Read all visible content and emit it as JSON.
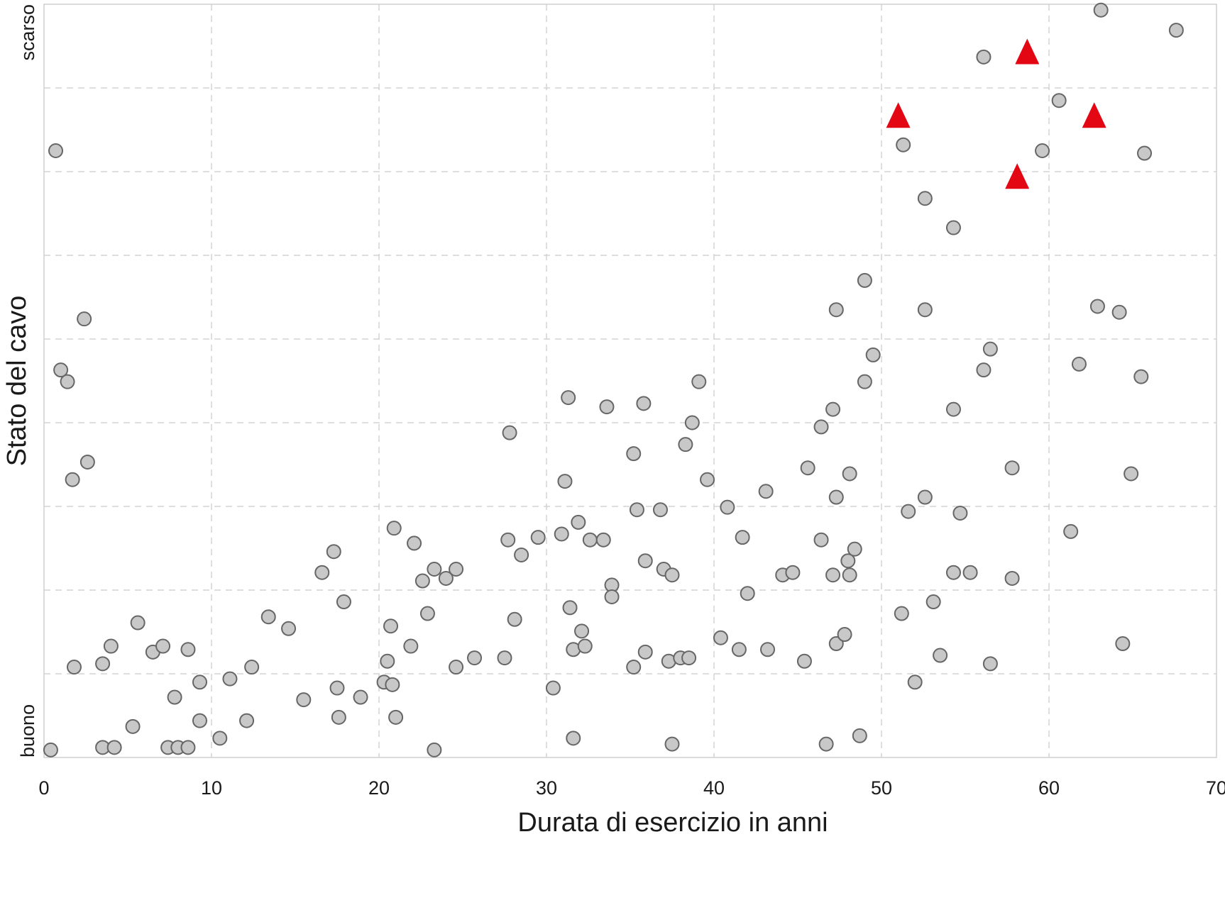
{
  "chart_data": {
    "type": "scatter",
    "xlabel": "Durata di esercizio in anni",
    "ylabel": "Stato del cavo",
    "xlim": [
      0,
      70
    ],
    "ylim": [
      0,
      9
    ],
    "x_ticks": [
      0,
      10,
      20,
      30,
      40,
      50,
      60,
      70
    ],
    "y_ticks": [
      1,
      2,
      3,
      4,
      5,
      6,
      7,
      8
    ],
    "y_tick_labels": [
      {
        "value": 0,
        "label": "buono"
      },
      {
        "value": 9,
        "label": "scarso"
      }
    ],
    "grid": true,
    "legend": "none",
    "series": [
      {
        "marker": "circle",
        "color": "#c8c8c8",
        "edge_color": "#666666",
        "points": [
          [
            0.7,
            7.25
          ],
          [
            1.0,
            4.63
          ],
          [
            1.4,
            4.49
          ],
          [
            1.7,
            3.32
          ],
          [
            1.8,
            1.08
          ],
          [
            2.4,
            5.24
          ],
          [
            2.6,
            3.53
          ],
          [
            0.4,
            0.09
          ],
          [
            3.5,
            0.12
          ],
          [
            3.5,
            1.12
          ],
          [
            4.0,
            1.33
          ],
          [
            4.2,
            0.12
          ],
          [
            5.3,
            0.37
          ],
          [
            5.6,
            1.61
          ],
          [
            6.5,
            1.26
          ],
          [
            7.1,
            1.33
          ],
          [
            7.4,
            0.12
          ],
          [
            7.8,
            0.72
          ],
          [
            8.0,
            0.12
          ],
          [
            8.6,
            0.12
          ],
          [
            8.6,
            1.29
          ],
          [
            9.3,
            0.9
          ],
          [
            9.3,
            0.44
          ],
          [
            10.5,
            0.23
          ],
          [
            11.1,
            0.94
          ],
          [
            12.1,
            0.44
          ],
          [
            12.4,
            1.08
          ],
          [
            13.4,
            1.68
          ],
          [
            14.6,
            1.54
          ],
          [
            15.5,
            0.69
          ],
          [
            16.6,
            2.21
          ],
          [
            17.3,
            2.46
          ],
          [
            17.5,
            0.83
          ],
          [
            17.6,
            0.48
          ],
          [
            17.9,
            1.86
          ],
          [
            18.9,
            0.72
          ],
          [
            20.3,
            0.9
          ],
          [
            20.5,
            1.15
          ],
          [
            20.7,
            1.57
          ],
          [
            20.8,
            0.87
          ],
          [
            20.9,
            2.74
          ],
          [
            21.0,
            0.48
          ],
          [
            21.9,
            1.33
          ],
          [
            22.1,
            2.56
          ],
          [
            22.6,
            2.11
          ],
          [
            22.9,
            1.72
          ],
          [
            23.3,
            2.25
          ],
          [
            23.3,
            0.09
          ],
          [
            24.0,
            2.14
          ],
          [
            24.6,
            2.25
          ],
          [
            24.6,
            1.08
          ],
          [
            25.7,
            1.19
          ],
          [
            27.5,
            1.19
          ],
          [
            27.7,
            2.6
          ],
          [
            27.8,
            3.88
          ],
          [
            28.1,
            1.65
          ],
          [
            28.5,
            2.42
          ],
          [
            29.5,
            2.63
          ],
          [
            30.4,
            0.83
          ],
          [
            30.9,
            2.67
          ],
          [
            31.1,
            3.3
          ],
          [
            31.3,
            4.3
          ],
          [
            31.4,
            1.79
          ],
          [
            31.6,
            1.29
          ],
          [
            31.6,
            0.23
          ],
          [
            31.9,
            2.81
          ],
          [
            32.1,
            1.51
          ],
          [
            32.3,
            1.33
          ],
          [
            32.6,
            2.6
          ],
          [
            33.4,
            2.6
          ],
          [
            33.6,
            4.19
          ],
          [
            33.9,
            2.06
          ],
          [
            33.9,
            1.92
          ],
          [
            35.2,
            3.63
          ],
          [
            35.2,
            1.08
          ],
          [
            35.4,
            2.96
          ],
          [
            35.8,
            4.23
          ],
          [
            35.9,
            2.35
          ],
          [
            35.9,
            1.26
          ],
          [
            36.8,
            2.96
          ],
          [
            37.0,
            2.25
          ],
          [
            37.3,
            1.15
          ],
          [
            37.5,
            2.18
          ],
          [
            37.5,
            0.16
          ],
          [
            38.0,
            1.19
          ],
          [
            38.3,
            3.74
          ],
          [
            38.5,
            1.19
          ],
          [
            38.7,
            4.0
          ],
          [
            39.1,
            4.49
          ],
          [
            39.6,
            3.32
          ],
          [
            40.4,
            1.43
          ],
          [
            40.8,
            2.99
          ],
          [
            41.5,
            1.29
          ],
          [
            41.7,
            2.63
          ],
          [
            42.0,
            1.96
          ],
          [
            43.1,
            3.18
          ],
          [
            43.2,
            1.29
          ],
          [
            44.1,
            2.18
          ],
          [
            44.7,
            2.21
          ],
          [
            45.4,
            1.15
          ],
          [
            45.6,
            3.46
          ],
          [
            46.4,
            3.95
          ],
          [
            46.4,
            2.6
          ],
          [
            46.7,
            0.16
          ],
          [
            47.1,
            4.16
          ],
          [
            47.1,
            2.18
          ],
          [
            47.3,
            5.35
          ],
          [
            47.3,
            3.11
          ],
          [
            47.3,
            1.36
          ],
          [
            47.8,
            1.47
          ],
          [
            48.0,
            2.35
          ],
          [
            48.1,
            3.39
          ],
          [
            48.1,
            2.18
          ],
          [
            48.4,
            2.49
          ],
          [
            48.7,
            0.26
          ],
          [
            49.0,
            5.7
          ],
          [
            49.0,
            4.49
          ],
          [
            49.5,
            4.81
          ],
          [
            51.2,
            1.72
          ],
          [
            51.3,
            7.32
          ],
          [
            51.6,
            2.94
          ],
          [
            52.0,
            0.9
          ],
          [
            52.6,
            6.68
          ],
          [
            52.6,
            5.35
          ],
          [
            52.6,
            3.11
          ],
          [
            53.1,
            1.86
          ],
          [
            53.5,
            1.22
          ],
          [
            54.3,
            6.33
          ],
          [
            54.3,
            4.16
          ],
          [
            54.3,
            2.21
          ],
          [
            54.7,
            2.92
          ],
          [
            55.3,
            2.21
          ],
          [
            56.1,
            8.37
          ],
          [
            56.1,
            4.63
          ],
          [
            56.5,
            4.88
          ],
          [
            56.5,
            1.12
          ],
          [
            57.8,
            3.46
          ],
          [
            57.8,
            2.14
          ],
          [
            59.6,
            7.25
          ],
          [
            60.6,
            7.85
          ],
          [
            61.3,
            2.7
          ],
          [
            61.8,
            4.7
          ],
          [
            62.9,
            5.39
          ],
          [
            63.1,
            8.93
          ],
          [
            64.2,
            5.32
          ],
          [
            64.4,
            1.36
          ],
          [
            64.9,
            3.39
          ],
          [
            65.5,
            4.55
          ],
          [
            65.7,
            7.22
          ],
          [
            67.6,
            8.69
          ]
        ]
      },
      {
        "marker": "triangle",
        "color": "#e30613",
        "points": [
          [
            51.0,
            7.64
          ],
          [
            58.7,
            8.4
          ],
          [
            58.1,
            6.91
          ],
          [
            62.7,
            7.64
          ]
        ]
      }
    ]
  }
}
